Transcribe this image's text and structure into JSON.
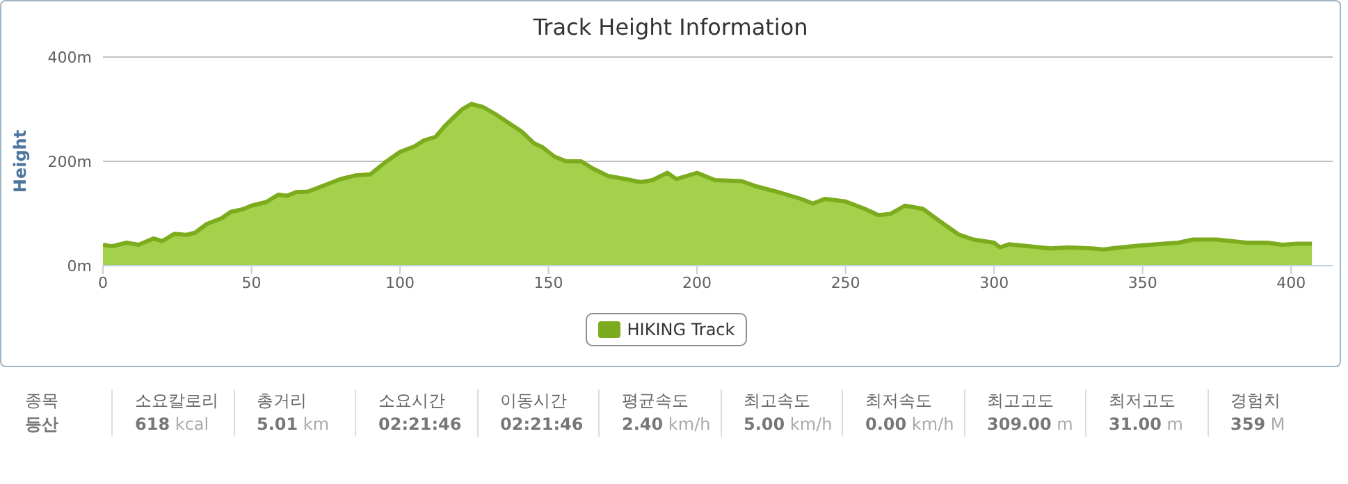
{
  "chart_data": {
    "type": "area",
    "title": "Track Height Information",
    "ylabel": "Height",
    "x": [
      0,
      3,
      8,
      12,
      17,
      20,
      24,
      28,
      31,
      35,
      40,
      43,
      47,
      50,
      55,
      59,
      62,
      65,
      69,
      75,
      80,
      85,
      90,
      95,
      100,
      105,
      108,
      112,
      115,
      118,
      121,
      124,
      128,
      132,
      137,
      141,
      145,
      148,
      152,
      156,
      161,
      165,
      170,
      176,
      181,
      185,
      190,
      193,
      200,
      206,
      215,
      220,
      228,
      235,
      239,
      243,
      250,
      256,
      261,
      265,
      270,
      276,
      282,
      288,
      293,
      300,
      302,
      305,
      312,
      319,
      325,
      333,
      337,
      341,
      350,
      357,
      362,
      367,
      375,
      380,
      385,
      392,
      397,
      402,
      407
    ],
    "series": [
      {
        "name": "HIKING Track",
        "color": "#7cac1e",
        "values": [
          40,
          37,
          44,
          40,
          52,
          47,
          61,
          59,
          63,
          80,
          91,
          103,
          108,
          115,
          122,
          136,
          134,
          141,
          142,
          155,
          166,
          173,
          175,
          198,
          218,
          229,
          240,
          247,
          267,
          284,
          300,
          310,
          304,
          291,
          272,
          257,
          235,
          227,
          209,
          200,
          200,
          186,
          172,
          166,
          160,
          164,
          178,
          166,
          178,
          164,
          162,
          152,
          140,
          128,
          119,
          128,
          123,
          110,
          97,
          99,
          115,
          109,
          84,
          60,
          50,
          44,
          35,
          41,
          37,
          33,
          35,
          33,
          31,
          34,
          39,
          42,
          44,
          50,
          50,
          47,
          44,
          44,
          40,
          42,
          42
        ]
      }
    ],
    "xlim": [
      0,
      414
    ],
    "xticks": [
      0,
      50,
      100,
      150,
      200,
      250,
      300,
      350,
      400
    ],
    "ylim": [
      0,
      400
    ],
    "yticks": [
      {
        "value": 0,
        "label": "0m"
      },
      {
        "value": 200,
        "label": "200m"
      },
      {
        "value": 400,
        "label": "400m"
      }
    ],
    "grid": "y",
    "legend": "bottom",
    "annotations": [
      "종목",
      "등산",
      "소요칼로리",
      "618 kcal",
      "총거리",
      "5.01 km",
      "소요시간",
      "02:21:46",
      "이동시간",
      "02:21:46",
      "평균속도",
      "2.40 km/h",
      "최고속도",
      "5.00 km/h",
      "최저속도",
      "0.00 km/h",
      "최고고도",
      "309.00 m",
      "최저고도",
      "31.00 m",
      "경험치",
      "359 M"
    ]
  }
}
